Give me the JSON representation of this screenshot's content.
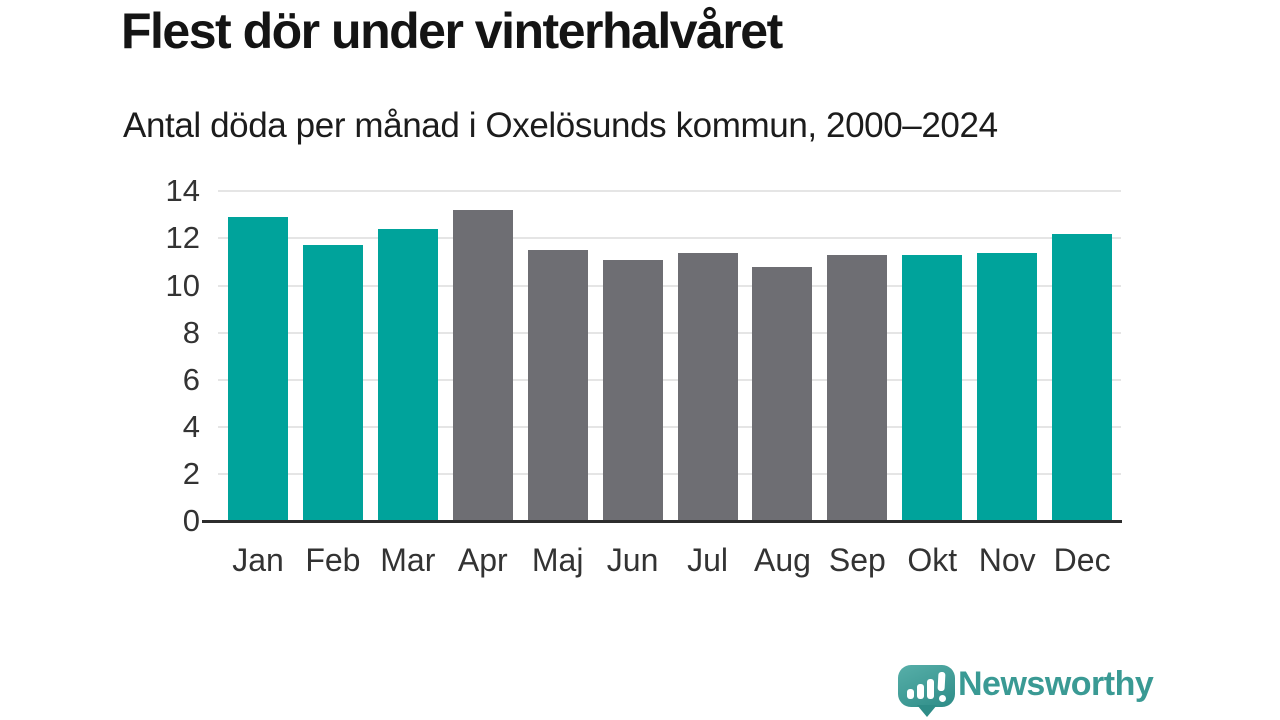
{
  "chart_data": {
    "type": "bar",
    "title": "Flest dör under vinterhalvåret",
    "subtitle": "Antal döda per månad i Oxelösunds kommun, 2000–2024",
    "categories": [
      "Jan",
      "Feb",
      "Mar",
      "Apr",
      "Maj",
      "Jun",
      "Jul",
      "Aug",
      "Sep",
      "Okt",
      "Nov",
      "Dec"
    ],
    "values": [
      12.9,
      11.7,
      12.4,
      13.2,
      11.5,
      11.1,
      11.4,
      10.8,
      11.3,
      11.3,
      11.4,
      12.2
    ],
    "bar_colors": [
      "teal",
      "teal",
      "teal",
      "gray",
      "gray",
      "gray",
      "gray",
      "gray",
      "gray",
      "teal",
      "teal",
      "teal"
    ],
    "palette": {
      "teal": "#00a39b",
      "gray": "#6e6e73"
    },
    "xlabel": "",
    "ylabel": "",
    "ylim": [
      0,
      14
    ],
    "yticks": [
      0,
      2,
      4,
      6,
      8,
      10,
      12,
      14
    ],
    "grid": "horizontal",
    "legend": "none"
  },
  "footer": {
    "brand": "Newsworthy",
    "icon": "speech-bubble-bar-chart-icon"
  },
  "colors": {
    "gridline": "#e5e5e5",
    "axis": "#2d2d2d",
    "tick_text": "#333333",
    "logo_teal": "#3a9a94",
    "logo_gradient_start": "#57afa9",
    "logo_gradient_end": "#2e8c87"
  }
}
